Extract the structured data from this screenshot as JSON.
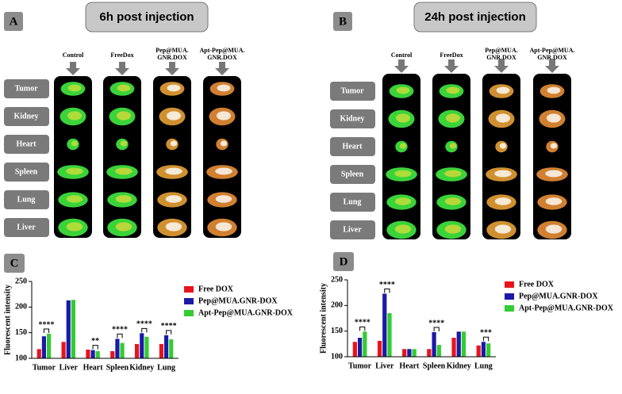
{
  "panels": [
    {
      "label": "A",
      "title": "6h post injection",
      "groups": [
        [
          "Control"
        ],
        [
          "FreeDox"
        ],
        [
          "Pep@MUA.",
          "GNR.DOX"
        ],
        [
          "Apt-Pep@MUA.",
          "GNR.DOX"
        ]
      ],
      "organs": [
        "Tumor",
        "Kidney",
        "Heart",
        "Spleen",
        "Lung",
        "Liver"
      ]
    },
    {
      "label": "B",
      "title": "24h post injection",
      "groups": [
        [
          "Control"
        ],
        [
          "FreeDox"
        ],
        [
          "Pep@MUA.",
          "GNR.DOX"
        ],
        [
          "Apt-Pep@MUA.",
          "GNR.DOX"
        ]
      ],
      "organs": [
        "Tumor",
        "Kidney",
        "Heart",
        "Spleen",
        "Lung",
        "Liver"
      ]
    }
  ],
  "chart_data": [
    {
      "type": "bar",
      "label": "C",
      "ylabel": "Fluorescent intensity",
      "categories": [
        "Tumor",
        "Liver",
        "Heart",
        "Spleen",
        "Kidney",
        "Lung"
      ],
      "series": [
        {
          "name": "Free DOX",
          "color": "#e8141b",
          "values": [
            118,
            132,
            117,
            114,
            128,
            128
          ]
        },
        {
          "name": "Pep@MUA.GNR-DOX",
          "color": "#1a1aa8",
          "values": [
            143,
            213,
            116,
            138,
            149,
            145
          ]
        },
        {
          "name": "Apt-Pep@MUA.GNR-DOX",
          "color": "#33cc33",
          "values": [
            148,
            214,
            114,
            130,
            142,
            137
          ]
        }
      ],
      "ylim": [
        100,
        250
      ],
      "yticks": [
        100,
        150,
        200,
        250
      ],
      "annotations": [
        {
          "text": "****",
          "category": "Tumor"
        },
        {
          "text": "**",
          "category": "Heart"
        },
        {
          "text": "****",
          "category": "Spleen"
        },
        {
          "text": "****",
          "category": "Kidney"
        },
        {
          "text": "****",
          "category": "Lung"
        }
      ]
    },
    {
      "type": "bar",
      "label": "D",
      "ylabel": "Fluorescent intensity",
      "categories": [
        "Tumor",
        "Liver",
        "Heart",
        "Spleen",
        "Kidney",
        "Lung"
      ],
      "series": [
        {
          "name": "Free DOX",
          "color": "#e8141b",
          "values": [
            129,
            131,
            115,
            115,
            137,
            122
          ]
        },
        {
          "name": "Pep@MUA.GNR-DOX",
          "color": "#1a1aa8",
          "values": [
            137,
            223,
            115,
            148,
            149,
            129
          ]
        },
        {
          "name": "Apt-Pep@MUA.GNR-DOX",
          "color": "#33cc33",
          "values": [
            149,
            185,
            115,
            123,
            149,
            126
          ]
        }
      ],
      "ylim": [
        100,
        250
      ],
      "yticks": [
        100,
        150,
        200,
        250
      ],
      "annotations": [
        {
          "text": "****",
          "category": "Tumor"
        },
        {
          "text": "****",
          "category": "Liver"
        },
        {
          "text": "****",
          "category": "Spleen"
        },
        {
          "text": "***",
          "category": "Lung"
        }
      ]
    }
  ]
}
